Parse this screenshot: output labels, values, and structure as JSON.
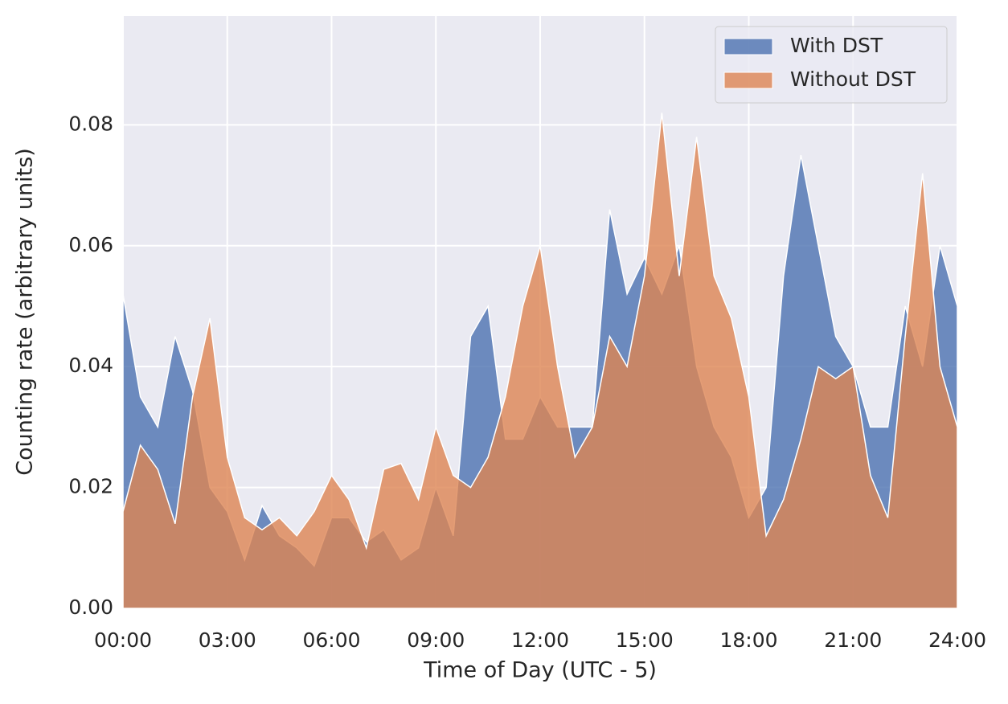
{
  "chart_data": {
    "type": "area",
    "xlabel": "Time of Day (UTC - 5)",
    "ylabel": "Counting rate (arbitrary units)",
    "x": [
      0,
      0.5,
      1,
      1.5,
      2,
      2.5,
      3,
      3.5,
      4,
      4.5,
      5,
      5.5,
      6,
      6.5,
      7,
      7.5,
      8,
      8.5,
      9,
      9.5,
      10,
      10.5,
      11,
      11.5,
      12,
      12.5,
      13,
      13.5,
      14,
      14.5,
      15,
      15.5,
      16,
      16.5,
      17,
      17.5,
      18,
      18.5,
      19,
      19.5,
      20,
      20.5,
      21,
      21.5,
      22,
      22.5,
      23,
      23.5,
      24
    ],
    "series": [
      {
        "name": "With DST",
        "color": "#4c72b0",
        "values": [
          0.052,
          0.035,
          0.03,
          0.045,
          0.036,
          0.02,
          0.016,
          0.008,
          0.017,
          0.012,
          0.01,
          0.007,
          0.015,
          0.015,
          0.011,
          0.013,
          0.008,
          0.01,
          0.02,
          0.012,
          0.045,
          0.05,
          0.028,
          0.028,
          0.035,
          0.03,
          0.03,
          0.03,
          0.066,
          0.052,
          0.058,
          0.052,
          0.06,
          0.04,
          0.03,
          0.025,
          0.015,
          0.02,
          0.055,
          0.075,
          0.06,
          0.045,
          0.04,
          0.03,
          0.03,
          0.05,
          0.04,
          0.06,
          0.05
        ]
      },
      {
        "name": "Without DST",
        "color": "#dd8452",
        "values": [
          0.016,
          0.027,
          0.023,
          0.014,
          0.035,
          0.048,
          0.025,
          0.015,
          0.013,
          0.015,
          0.012,
          0.016,
          0.022,
          0.018,
          0.01,
          0.023,
          0.024,
          0.018,
          0.03,
          0.022,
          0.02,
          0.025,
          0.035,
          0.05,
          0.06,
          0.04,
          0.025,
          0.03,
          0.045,
          0.04,
          0.055,
          0.082,
          0.055,
          0.078,
          0.055,
          0.048,
          0.035,
          0.012,
          0.018,
          0.028,
          0.04,
          0.038,
          0.04,
          0.022,
          0.015,
          0.045,
          0.072,
          0.04,
          0.03
        ]
      }
    ],
    "xlim": [
      0,
      24
    ],
    "xticks": [
      {
        "value": 0,
        "label": "00:00"
      },
      {
        "value": 3,
        "label": "03:00"
      },
      {
        "value": 6,
        "label": "06:00"
      },
      {
        "value": 9,
        "label": "09:00"
      },
      {
        "value": 12,
        "label": "12:00"
      },
      {
        "value": 15,
        "label": "15:00"
      },
      {
        "value": 18,
        "label": "18:00"
      },
      {
        "value": 21,
        "label": "21:00"
      },
      {
        "value": 24,
        "label": "24:00"
      }
    ],
    "ylim": [
      0,
      0.098
    ],
    "yticks": [
      {
        "value": 0,
        "label": "0.00"
      },
      0.02,
      0.04,
      0.06,
      0.08
    ],
    "grid": true,
    "legend": "upper right"
  }
}
